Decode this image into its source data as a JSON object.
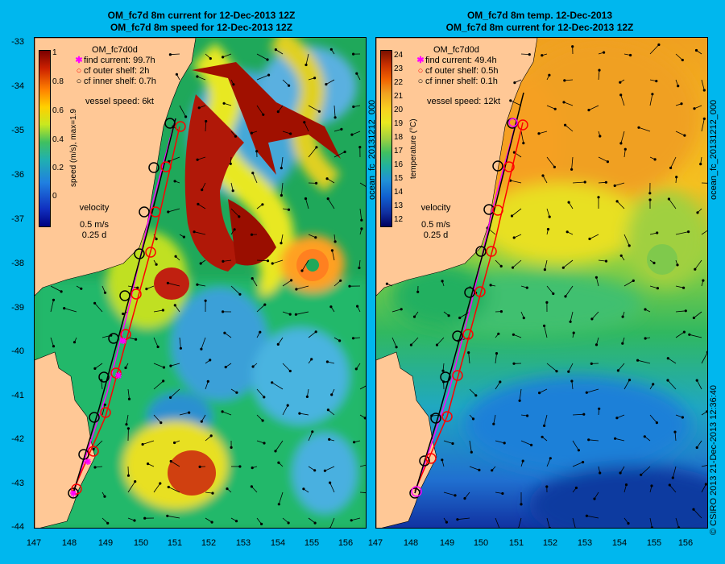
{
  "left": {
    "title1": "OM_fc7d 8m current for 12-Dec-2013 12Z",
    "title2": "OM_fc7d 8m speed for 12-Dec-2013 12Z",
    "model": "OM_fc7d0d",
    "find": "find current: 99.7h",
    "outer": "cf outer shelf: 2h",
    "inner": "cf inner shelf: 0.7h",
    "vessel": "vessel speed: 6kt",
    "cbar_label": "speed (m/s),  max=1.9",
    "cbar_ticks": [
      "1",
      "0.8",
      "0.6",
      "0.4",
      "0.2",
      "0"
    ],
    "velocity": "velocity",
    "vel1": "0.5 m/s",
    "vel2": "0.25 d"
  },
  "right": {
    "title1": "OM_fc7d 8m temp. 12-Dec-2013",
    "title2": "OM_fc7d 8m current for 12-Dec-2013 12Z",
    "model": "OM_fc7d0d",
    "find": "find current: 49.4h",
    "outer": "cf outer shelf: 0.5h",
    "inner": "cf inner shelf: 0.1h",
    "vessel": "vessel speed: 12kt",
    "cbar_label": "temperature (°C)",
    "cbar_ticks": [
      "24",
      "23",
      "22",
      "21",
      "20",
      "19",
      "18",
      "17",
      "16",
      "15",
      "14",
      "13",
      "12"
    ],
    "velocity": "velocity",
    "vel1": "0.5 m/s",
    "vel2": "0.25 d"
  },
  "side_label_left": "ocean_fc_20131212_000",
  "side_label_right": "ocean_fc_20131212_000",
  "credit": "© CSIRO 2013   21-Dec-2013 12:36:40",
  "yticks": [
    "-33",
    "-34",
    "-35",
    "-36",
    "-37",
    "-38",
    "-39",
    "-40",
    "-41",
    "-42",
    "-43",
    "-44"
  ],
  "xticks": [
    "147",
    "148",
    "149",
    "150",
    "151",
    "152",
    "153",
    "154",
    "155",
    "156"
  ],
  "colors": {
    "background": "#00b7ee",
    "land": "#ffc896",
    "route_find": "#ff00ff",
    "route_outer": "#ff0000",
    "route_inner": "#000000"
  }
}
